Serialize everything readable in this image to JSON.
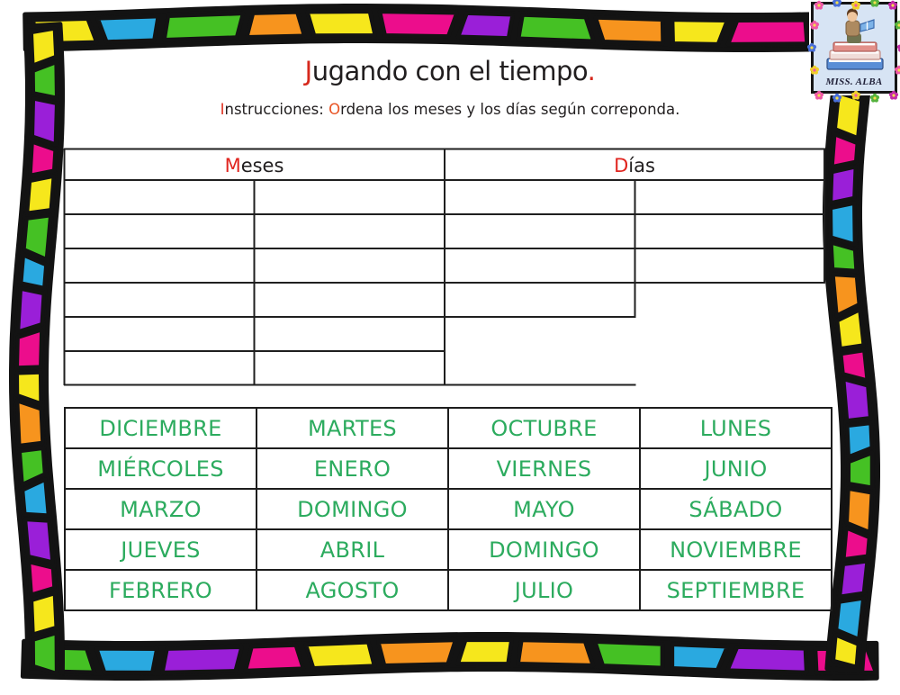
{
  "title": {
    "accent": "J",
    "body": "ugando con el tiempo",
    "period": ".",
    "accent_color": "#d6281c",
    "text_color": "#211e1f"
  },
  "instructions": {
    "accent1": "I",
    "part1": "nstrucciones: ",
    "accent2": "O",
    "part2": "rdena los meses y los días según correponda.",
    "accent1_color": "#e03222",
    "accent2_color": "#e85323"
  },
  "sort_table": {
    "col1_header": {
      "accent": "M",
      "rest": "eses"
    },
    "col2_header": {
      "accent": "D",
      "rest": "ías"
    },
    "accent_color": "#e0251f"
  },
  "word_bank": {
    "text_color": "#2cab5e",
    "rows": [
      [
        "DICIEMBRE",
        "MARTES",
        "OCTUBRE",
        "LUNES"
      ],
      [
        "MIÉRCOLES",
        "ENERO",
        "VIERNES",
        "JUNIO"
      ],
      [
        "MARZO",
        "DOMINGO",
        "MAYO",
        "SÁBADO"
      ],
      [
        "JUEVES",
        "ABRIL",
        "DOMINGO",
        "NOVIEMBRE"
      ],
      [
        "FEBRERO",
        "AGOSTO",
        "JULIO",
        "SEPTIEMBRE"
      ]
    ]
  },
  "badge": {
    "label": "MISS. ALBA",
    "bg_color": "#d7e4f4",
    "flower_colors": [
      "#ef59a5",
      "#4a6fd8",
      "#f0cf2c",
      "#55b23d",
      "#c32aa8"
    ]
  },
  "border": {
    "palette": {
      "blue": "#2aa9e0",
      "green": "#45c124",
      "orange": "#f7941e",
      "yellow": "#f6e71c",
      "magenta": "#ec0d8c",
      "purple": "#9a1fd8"
    },
    "top": [
      "yellow",
      "blue",
      "green",
      "orange",
      "yellow",
      "magenta",
      "purple",
      "green",
      "orange",
      "yellow",
      "magenta",
      "purple"
    ],
    "right": [
      "orange",
      "green",
      "yellow",
      "magenta",
      "purple",
      "blue",
      "green",
      "orange",
      "yellow",
      "magenta",
      "purple",
      "blue",
      "green",
      "orange",
      "magenta",
      "purple",
      "blue",
      "yellow"
    ],
    "bottom": [
      "green",
      "blue",
      "purple",
      "magenta",
      "yellow",
      "orange",
      "yellow",
      "orange",
      "green",
      "blue",
      "purple",
      "magenta"
    ],
    "left": [
      "yellow",
      "green",
      "purple",
      "magenta",
      "yellow",
      "green",
      "blue",
      "purple",
      "magenta",
      "yellow",
      "orange",
      "green",
      "blue",
      "purple",
      "magenta",
      "yellow",
      "green"
    ]
  }
}
